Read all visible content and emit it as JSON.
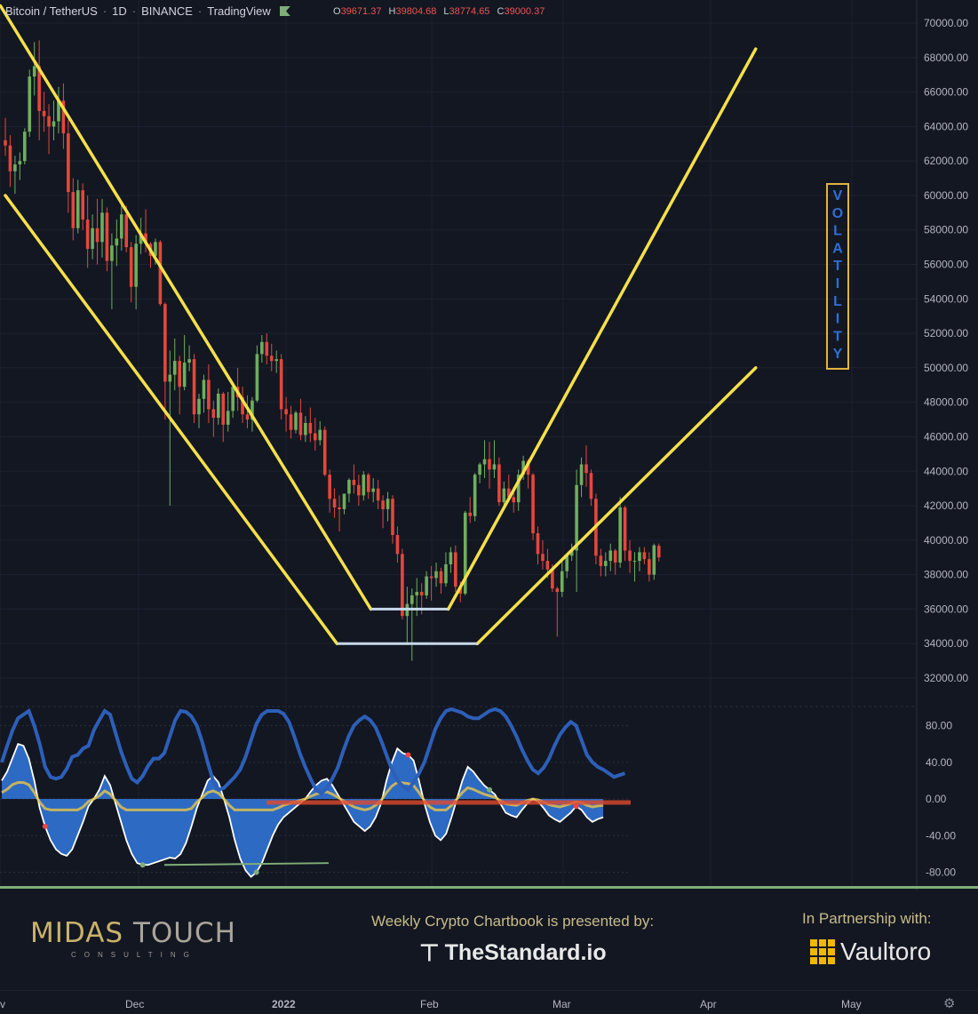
{
  "header": {
    "symbol": "Bitcoin / TetherUS",
    "interval": "1D",
    "exchange": "BINANCE",
    "platform": "TradingView",
    "ohlc": [
      {
        "k": "O",
        "v": "39671.37"
      },
      {
        "k": "H",
        "v": "39804.68"
      },
      {
        "k": "L",
        "v": "38774.65"
      },
      {
        "k": "C",
        "v": "39000.37"
      }
    ]
  },
  "chart_data": {
    "type": "candlestick",
    "price_axis": {
      "min": 30000,
      "max": 71000,
      "labels": [
        "70000.00",
        "68000.00",
        "66000.00",
        "64000.00",
        "62000.00",
        "60000.00",
        "58000.00",
        "56000.00",
        "54000.00",
        "52000.00",
        "50000.00",
        "48000.00",
        "46000.00",
        "44000.00",
        "42000.00",
        "40000.00",
        "38000.00",
        "36000.00",
        "34000.00",
        "32000.00"
      ]
    },
    "oscillator_axis": {
      "min": -100,
      "max": 100,
      "labels": [
        "80.00",
        "40.00",
        "0.00",
        "-40.00",
        "-80.00"
      ]
    },
    "x_labels": [
      "v",
      "Dec",
      "2022",
      "Feb",
      "Mar",
      "Apr",
      "May"
    ],
    "candles_ohlc": [
      [
        63200,
        64500,
        62300,
        62900
      ],
      [
        62900,
        63500,
        60500,
        61400
      ],
      [
        61400,
        62300,
        60100,
        61800
      ],
      [
        61800,
        62500,
        60900,
        62000
      ],
      [
        62000,
        63900,
        61800,
        63700
      ],
      [
        63700,
        67300,
        63400,
        66900
      ],
      [
        66900,
        68900,
        65800,
        67500
      ],
      [
        67500,
        69000,
        63200,
        64900
      ],
      [
        64900,
        66000,
        63700,
        64600
      ],
      [
        64600,
        65300,
        62400,
        64000
      ],
      [
        64000,
        65500,
        63200,
        64300
      ],
      [
        64300,
        66300,
        63600,
        65500
      ],
      [
        65500,
        66500,
        62700,
        63600
      ],
      [
        63600,
        64400,
        59000,
        60200
      ],
      [
        60200,
        61000,
        57400,
        58100
      ],
      [
        58100,
        60900,
        57800,
        60300
      ],
      [
        60300,
        60700,
        58000,
        58600
      ],
      [
        58600,
        60000,
        55800,
        56900
      ],
      [
        56900,
        58900,
        56300,
        58100
      ],
      [
        58100,
        59800,
        56000,
        57300
      ],
      [
        57300,
        59800,
        56400,
        59000
      ],
      [
        59000,
        59300,
        55600,
        56200
      ],
      [
        56200,
        57800,
        53400,
        57100
      ],
      [
        57100,
        58600,
        55900,
        57500
      ],
      [
        57500,
        59500,
        56800,
        58900
      ],
      [
        58900,
        59400,
        56700,
        57000
      ],
      [
        57000,
        57300,
        53800,
        54700
      ],
      [
        54700,
        57700,
        53400,
        57200
      ],
      [
        57200,
        58700,
        56600,
        57800
      ],
      [
        57800,
        59200,
        56700,
        57200
      ],
      [
        57200,
        57300,
        55800,
        56500
      ],
      [
        56500,
        57500,
        56000,
        57300
      ],
      [
        57300,
        57400,
        53600,
        53700
      ],
      [
        53700,
        53800,
        47000,
        49200
      ],
      [
        49200,
        51000,
        42000,
        49600
      ],
      [
        49600,
        51700,
        48700,
        50400
      ],
      [
        50400,
        50700,
        47300,
        48900
      ],
      [
        48900,
        51900,
        48700,
        50300
      ],
      [
        50300,
        51300,
        49800,
        50500
      ],
      [
        50500,
        50800,
        46800,
        47300
      ],
      [
        47300,
        48500,
        46500,
        48200
      ],
      [
        48200,
        49600,
        47400,
        49300
      ],
      [
        49300,
        50200,
        46800,
        47600
      ],
      [
        47600,
        48100,
        46000,
        47100
      ],
      [
        47100,
        48800,
        46700,
        48500
      ],
      [
        48500,
        48600,
        45700,
        46700
      ],
      [
        46700,
        48600,
        46300,
        47500
      ],
      [
        47500,
        49200,
        47100,
        48900
      ],
      [
        48900,
        50000,
        47500,
        48300
      ],
      [
        48300,
        48900,
        46800,
        47300
      ],
      [
        47300,
        48400,
        46500,
        47000
      ],
      [
        47000,
        48300,
        46300,
        48100
      ],
      [
        48100,
        51300,
        48000,
        50800
      ],
      [
        50800,
        51900,
        50300,
        51500
      ],
      [
        51500,
        52000,
        50200,
        50700
      ],
      [
        50700,
        51400,
        49800,
        50400
      ],
      [
        50400,
        51000,
        49700,
        50500
      ],
      [
        50500,
        50800,
        47000,
        47600
      ],
      [
        47600,
        48300,
        46300,
        47300
      ],
      [
        47300,
        47800,
        45900,
        46400
      ],
      [
        46400,
        47500,
        46200,
        47400
      ],
      [
        47400,
        48200,
        45800,
        46100
      ],
      [
        46100,
        47200,
        45700,
        46800
      ],
      [
        46800,
        47700,
        45700,
        46200
      ],
      [
        46200,
        47100,
        45200,
        45800
      ],
      [
        45800,
        46900,
        45500,
        46400
      ],
      [
        46400,
        46600,
        43700,
        43800
      ],
      [
        43800,
        44100,
        41600,
        42400
      ],
      [
        42400,
        43000,
        41300,
        41900
      ],
      [
        41900,
        42600,
        40500,
        41800
      ],
      [
        41800,
        42700,
        41500,
        42700
      ],
      [
        42700,
        43600,
        42200,
        43500
      ],
      [
        43500,
        44400,
        42700,
        43200
      ],
      [
        43200,
        43800,
        42000,
        42600
      ],
      [
        42600,
        44000,
        42300,
        43800
      ],
      [
        43800,
        43900,
        42400,
        42800
      ],
      [
        42800,
        43600,
        42200,
        43000
      ],
      [
        43000,
        43500,
        41800,
        42300
      ],
      [
        42300,
        42600,
        40700,
        41800
      ],
      [
        41800,
        42800,
        41100,
        42400
      ],
      [
        42400,
        42600,
        39800,
        40300
      ],
      [
        40300,
        40800,
        38700,
        39200
      ],
      [
        39200,
        39500,
        35400,
        35600
      ],
      [
        35600,
        37300,
        34000,
        36300
      ],
      [
        36300,
        37200,
        33000,
        36800
      ],
      [
        36800,
        37800,
        35600,
        37000
      ],
      [
        37000,
        37500,
        35700,
        36800
      ],
      [
        36800,
        38200,
        36600,
        37900
      ],
      [
        37900,
        38500,
        36500,
        37800
      ],
      [
        37800,
        38700,
        37300,
        38200
      ],
      [
        38200,
        38400,
        36900,
        37500
      ],
      [
        37500,
        39300,
        37300,
        38600
      ],
      [
        38600,
        39600,
        38100,
        39300
      ],
      [
        39300,
        39700,
        37000,
        37300
      ],
      [
        37300,
        37600,
        36400,
        36900
      ],
      [
        36900,
        41700,
        36800,
        41600
      ],
      [
        41600,
        42500,
        41000,
        41400
      ],
      [
        41400,
        43900,
        41100,
        43800
      ],
      [
        43800,
        44500,
        43300,
        44400
      ],
      [
        44400,
        45800,
        43600,
        44700
      ],
      [
        44700,
        45700,
        43000,
        44100
      ],
      [
        44100,
        45800,
        43600,
        44400
      ],
      [
        44400,
        44800,
        42000,
        42200
      ],
      [
        42200,
        43400,
        41800,
        43000
      ],
      [
        43000,
        43800,
        42200,
        42500
      ],
      [
        42500,
        43100,
        41600,
        42200
      ],
      [
        42200,
        44100,
        41700,
        43800
      ],
      [
        43800,
        44900,
        43500,
        44600
      ],
      [
        44600,
        44700,
        43000,
        43800
      ],
      [
        43800,
        43900,
        40000,
        40400
      ],
      [
        40400,
        40800,
        38600,
        39200
      ],
      [
        39200,
        40000,
        38300,
        38800
      ],
      [
        38800,
        39500,
        37800,
        38300
      ],
      [
        38300,
        38600,
        37000,
        37200
      ],
      [
        37200,
        37300,
        34400,
        37000
      ],
      [
        37000,
        38800,
        36700,
        38200
      ],
      [
        38200,
        39200,
        37800,
        39100
      ],
      [
        39100,
        39800,
        38800,
        39400
      ],
      [
        39400,
        44100,
        37000,
        43200
      ],
      [
        43200,
        44800,
        42500,
        44400
      ],
      [
        44400,
        45500,
        43100,
        43900
      ],
      [
        43900,
        44100,
        42000,
        42400
      ],
      [
        42400,
        42700,
        38600,
        39100
      ],
      [
        39100,
        39500,
        37900,
        38500
      ],
      [
        38500,
        39300,
        37900,
        38800
      ],
      [
        38800,
        39800,
        38200,
        39400
      ],
      [
        39400,
        39500,
        38000,
        38700
      ],
      [
        38700,
        42500,
        38400,
        41900
      ],
      [
        41900,
        42000,
        38800,
        39400
      ],
      [
        39400,
        40000,
        38100,
        38800
      ],
      [
        38800,
        39300,
        37600,
        38800
      ],
      [
        38800,
        39600,
        38200,
        39300
      ],
      [
        39300,
        39600,
        38600,
        38900
      ],
      [
        38900,
        39300,
        37600,
        38000
      ],
      [
        38000,
        39800,
        37700,
        39700
      ],
      [
        39671.37,
        39804.68,
        38774.65,
        39000.37
      ]
    ],
    "trendlines": [
      {
        "name": "upper-channel",
        "points": [
          [
            -1,
            71000
          ],
          [
            75.5,
            36000
          ]
        ]
      },
      {
        "name": "lower-channel",
        "points": [
          [
            0,
            60000
          ],
          [
            68.5,
            34000
          ]
        ]
      },
      {
        "name": "upper-v",
        "points": [
          [
            91.5,
            36000
          ],
          [
            155,
            68500
          ]
        ]
      },
      {
        "name": "lower-v",
        "points": [
          [
            97.5,
            34000
          ],
          [
            155,
            50000
          ]
        ]
      }
    ],
    "support_lines": [
      {
        "from": 68.5,
        "to": 97.5,
        "value": 34000
      },
      {
        "from": 75.5,
        "to": 91.5,
        "value": 36000
      }
    ],
    "annotation": {
      "text": "VOLATILITY"
    },
    "oscillator": {
      "line_blue": [
        40,
        58,
        75,
        88,
        92,
        96,
        80,
        60,
        35,
        24,
        22,
        24,
        33,
        46,
        48,
        55,
        58,
        75,
        86,
        96,
        92,
        72,
        52,
        36,
        22,
        18,
        25,
        36,
        44,
        44,
        50,
        68,
        86,
        96,
        95,
        90,
        80,
        62,
        40,
        20,
        10,
        12,
        18,
        24,
        32,
        46,
        64,
        82,
        92,
        96,
        96,
        96,
        93,
        84,
        68,
        50,
        35,
        22,
        10,
        6,
        12,
        22,
        34,
        52,
        68,
        80,
        86,
        90,
        86,
        78,
        64,
        48,
        32,
        20,
        14,
        10,
        18,
        28,
        40,
        58,
        76,
        88,
        96,
        98,
        96,
        94,
        90,
        88,
        88,
        92,
        96,
        98,
        96,
        90,
        80,
        68,
        54,
        42,
        32,
        28,
        34,
        44,
        58,
        70,
        78,
        84,
        80,
        64,
        48,
        40,
        35,
        32,
        28,
        24,
        26,
        28
      ],
      "wave": [
        20,
        30,
        45,
        60,
        58,
        44,
        20,
        -10,
        -30,
        -45,
        -55,
        -60,
        -62,
        -55,
        -40,
        -25,
        -8,
        0,
        10,
        25,
        15,
        -5,
        -25,
        -45,
        -60,
        -70,
        -72,
        -72,
        -70,
        -68,
        -66,
        -64,
        -65,
        -60,
        -48,
        -30,
        -10,
        5,
        20,
        25,
        18,
        0,
        -20,
        -45,
        -65,
        -78,
        -85,
        -80,
        -70,
        -55,
        -40,
        -28,
        -20,
        -15,
        -10,
        -5,
        0,
        8,
        15,
        20,
        22,
        15,
        5,
        -5,
        -15,
        -25,
        -30,
        -35,
        -30,
        -20,
        -5,
        20,
        40,
        55,
        50,
        48,
        42,
        20,
        -5,
        -25,
        -40,
        -45,
        -38,
        -20,
        0,
        20,
        35,
        30,
        22,
        15,
        10,
        5,
        -5,
        -15,
        -18,
        -20,
        -12,
        -5,
        0,
        -3,
        -10,
        -18,
        -22,
        -25,
        -20,
        -15,
        -8,
        -12,
        -20,
        -25,
        -22,
        -20
      ]
    }
  },
  "footer": {
    "brand": "MIDAS",
    "brand2": "TOUCH",
    "brand_sub": "CONSULTING",
    "presented_by": "Weekly Crypto Chartbook is presented by:",
    "sponsor": "TheStandard.io",
    "partnership": "In Partnership with:",
    "partner": "Vaultoro"
  }
}
